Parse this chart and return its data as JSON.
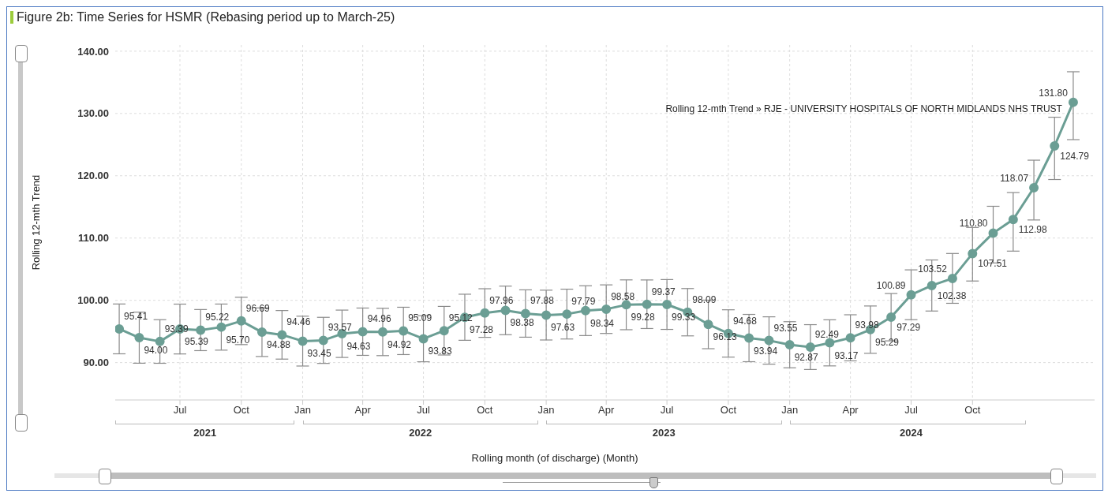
{
  "chart_data": {
    "type": "line",
    "title": "Figure 2b: Time Series for HSMR (Rebasing period up to March-25)",
    "xlabel": "Rolling month (of discharge) (Month)",
    "ylabel": "Rolling 12-mth Trend",
    "x": [
      "2021-04",
      "2021-05",
      "2021-06",
      "2021-07",
      "2021-08",
      "2021-09",
      "2021-10",
      "2021-11",
      "2021-12",
      "2022-01",
      "2022-02",
      "2022-03",
      "2022-04",
      "2022-05",
      "2022-06",
      "2022-07",
      "2022-08",
      "2022-09",
      "2022-10",
      "2022-11",
      "2022-12",
      "2023-01",
      "2023-02",
      "2023-03",
      "2023-04",
      "2023-05",
      "2023-06",
      "2023-07",
      "2023-08",
      "2023-09",
      "2023-10",
      "2023-11",
      "2023-12",
      "2024-01",
      "2024-02",
      "2024-03",
      "2024-04",
      "2024-05",
      "2024-06",
      "2024-07",
      "2024-08",
      "2024-09",
      "2024-10",
      "2024-11",
      "2024-12",
      "2025-01",
      "2025-02",
      "2025-03"
    ],
    "series": [
      {
        "name": "Rolling 12-mth Trend » RJE - UNIVERSITY HOSPITALS OF NORTH MIDLANDS NHS TRUST",
        "color": "#6b9e94",
        "values": [
          95.41,
          94.0,
          93.39,
          95.39,
          95.22,
          95.7,
          96.69,
          94.88,
          94.46,
          93.45,
          93.57,
          94.63,
          94.96,
          94.92,
          95.09,
          93.83,
          95.12,
          97.28,
          97.96,
          98.38,
          97.88,
          97.63,
          97.79,
          98.34,
          98.58,
          99.28,
          99.37,
          99.33,
          98.09,
          96.13,
          94.68,
          93.94,
          93.55,
          92.87,
          92.49,
          93.17,
          93.98,
          95.29,
          97.29,
          100.89,
          102.38,
          103.52,
          107.51,
          110.8,
          112.98,
          118.07,
          124.79,
          131.8
        ],
        "value_labels": [
          "95.41",
          "94.00",
          "93.39",
          "95.39",
          "95.22",
          "95.70",
          "96.69",
          "94.88",
          "94.46",
          "93.45",
          "93.57",
          "94.63",
          "94.96",
          "94.92",
          "95.09",
          "93.83",
          "95.12",
          "97.28",
          "97.96",
          "98.38",
          "97.88",
          "97.63",
          "97.79",
          "98.34",
          "98.58",
          "99.28",
          "99.37",
          "99.33",
          "98.09",
          "96.13",
          "94.68",
          "93.94",
          "93.55",
          "92.87",
          "92.49",
          "93.17",
          "93.98",
          "95.29",
          "97.29",
          "100.89",
          "102.38",
          "103.52",
          "107.51",
          "110.80",
          "112.98",
          "118.07",
          "124.79",
          "131.80"
        ],
        "errors": [
          4.0,
          4.1,
          3.5,
          4.0,
          3.3,
          3.7,
          3.8,
          3.9,
          3.9,
          4.0,
          3.7,
          3.8,
          3.8,
          3.8,
          3.8,
          3.7,
          3.9,
          3.7,
          3.9,
          3.9,
          3.8,
          4.0,
          4.0,
          4.0,
          3.9,
          4.0,
          3.9,
          4.0,
          3.8,
          3.9,
          3.8,
          3.8,
          3.8,
          3.7,
          3.6,
          3.7,
          3.7,
          3.8,
          3.8,
          4.0,
          4.1,
          4.0,
          [
            103.1,
            111.7
          ],
          [
            106.0,
            115.1
          ],
          [
            107.9,
            117.3
          ],
          [
            112.9,
            122.5
          ],
          [
            119.4,
            129.4
          ],
          [
            125.8,
            136.7
          ]
        ]
      }
    ],
    "xlim": [
      "2021-03-26",
      "2025-04-02"
    ],
    "xticks": [
      {
        "value": "2021-07",
        "label": "Jul"
      },
      {
        "value": "2021-10",
        "label": "Oct"
      },
      {
        "value": "2022-01",
        "label": "Jan"
      },
      {
        "value": "2022-04",
        "label": "Apr"
      },
      {
        "value": "2022-07",
        "label": "Jul"
      },
      {
        "value": "2022-10",
        "label": "Oct"
      },
      {
        "value": "2023-01",
        "label": "Jan"
      },
      {
        "value": "2023-04",
        "label": "Apr"
      },
      {
        "value": "2023-07",
        "label": "Jul"
      },
      {
        "value": "2023-10",
        "label": "Oct"
      },
      {
        "value": "2024-01",
        "label": "Jan"
      },
      {
        "value": "2024-04",
        "label": "Apr"
      },
      {
        "value": "2024-07",
        "label": "Jul"
      },
      {
        "value": "2024-10",
        "label": "Oct"
      }
    ],
    "ylim": [
      84,
      141
    ],
    "yticks": [
      {
        "value": 90,
        "label": "90.00"
      },
      {
        "value": 100,
        "label": "100.00"
      },
      {
        "value": 110,
        "label": "110.00"
      },
      {
        "value": 120,
        "label": "120.00"
      },
      {
        "value": 130,
        "label": "130.00"
      },
      {
        "value": 140,
        "label": "140.00"
      }
    ],
    "annotations": [
      "2021",
      "2022",
      "2023",
      "2024"
    ],
    "grid": true,
    "legend": false,
    "marker": "circle",
    "line_style": "solid"
  }
}
